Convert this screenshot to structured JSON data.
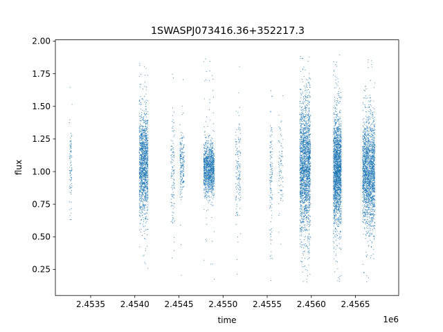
{
  "chart_data": {
    "type": "scatter",
    "title": "1SWASPJ073416.36+352217.3",
    "xlabel": "time",
    "ylabel": "flux",
    "x_offset_label": "1e6",
    "xlim": [
      2453100,
      2456990
    ],
    "ylim": [
      0.05,
      2.01
    ],
    "x_ticks": [
      2453500,
      2454000,
      2454500,
      2455000,
      2455500,
      2456000,
      2456500
    ],
    "x_tick_labels": [
      "2.4535",
      "2.4540",
      "2.4545",
      "2.4550",
      "2.4555",
      "2.4560",
      "2.4565"
    ],
    "y_ticks": [
      0.25,
      0.5,
      0.75,
      1.0,
      1.25,
      1.5,
      1.75,
      2.0
    ],
    "y_tick_labels": [
      "0.25",
      "0.50",
      "0.75",
      "1.00",
      "1.25",
      "1.50",
      "1.75",
      "2.00"
    ],
    "grid": false,
    "marker_color": "#1f77b4",
    "observing_seasons": [
      {
        "x_start": 2453260,
        "x_end": 2453290,
        "center": 1.05,
        "spread": 0.2,
        "n": 90
      },
      {
        "x_start": 2454050,
        "x_end": 2454150,
        "center": 1.05,
        "spread": 0.2,
        "n": 1400
      },
      {
        "x_start": 2454410,
        "x_end": 2454450,
        "center": 1.0,
        "spread": 0.25,
        "n": 120
      },
      {
        "x_start": 2454510,
        "x_end": 2454560,
        "center": 1.05,
        "spread": 0.12,
        "n": 200
      },
      {
        "x_start": 2454780,
        "x_end": 2454900,
        "center": 1.02,
        "spread": 0.1,
        "n": 1200
      },
      {
        "x_start": 2455140,
        "x_end": 2455200,
        "center": 1.0,
        "spread": 0.2,
        "n": 150
      },
      {
        "x_start": 2455530,
        "x_end": 2455560,
        "center": 1.0,
        "spread": 0.25,
        "n": 120
      },
      {
        "x_start": 2455630,
        "x_end": 2455680,
        "center": 1.0,
        "spread": 0.2,
        "n": 80
      },
      {
        "x_start": 2455870,
        "x_end": 2455990,
        "center": 1.05,
        "spread": 0.25,
        "n": 2000
      },
      {
        "x_start": 2456250,
        "x_end": 2456340,
        "center": 1.02,
        "spread": 0.2,
        "n": 2000
      },
      {
        "x_start": 2456580,
        "x_end": 2456720,
        "center": 1.0,
        "spread": 0.2,
        "n": 2000
      }
    ]
  }
}
